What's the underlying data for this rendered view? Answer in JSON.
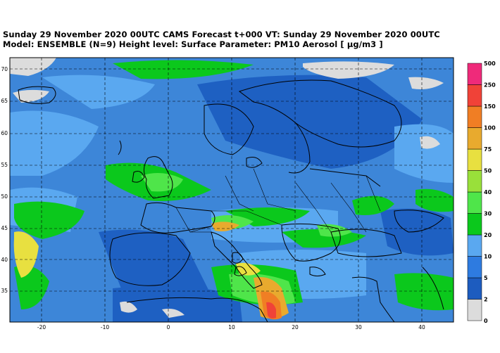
{
  "header": {
    "line1": "Sunday 29 November 2020 00UTC CAMS Forecast t+000 VT: Sunday 29 November 2020 00UTC",
    "line2": "Model: ENSEMBLE (N=9) Height level: Surface  Parameter: PM10 Aerosol [ µg/m3 ]"
  },
  "map": {
    "lon_range": [
      -25,
      45
    ],
    "lat_range": [
      30,
      71
    ],
    "lon_ticks": [
      "-20",
      "-10",
      "0",
      "10",
      "20",
      "30",
      "40"
    ],
    "lat_ticks": [
      "35",
      "40",
      "45",
      "50",
      "55",
      "60",
      "65",
      "70"
    ],
    "background_color": "#3d86d8"
  },
  "colorbar": {
    "labels": [
      "0",
      "2",
      "5",
      "10",
      "20",
      "30",
      "40",
      "50",
      "75",
      "100",
      "150",
      "250",
      "500"
    ],
    "colors": [
      "#dcdcdc",
      "#1d5cbf",
      "#2e7be0",
      "#5aa8f0",
      "#0bc81c",
      "#4fe54a",
      "#99e03a",
      "#e8e040",
      "#e8aa2e",
      "#f07e24",
      "#f04238",
      "#ef2a7a"
    ]
  }
}
